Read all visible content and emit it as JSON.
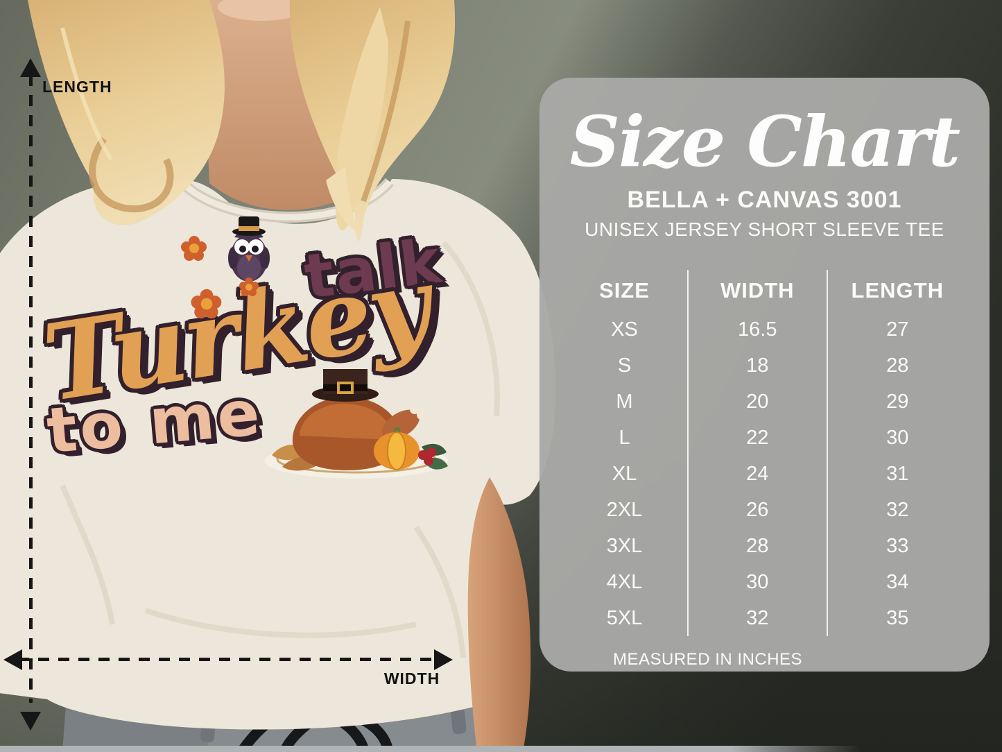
{
  "measurement_labels": {
    "length": "LENGTH",
    "width": "WIDTH"
  },
  "shirt_design": {
    "word_talk": "talk",
    "word_turkey": "Turkey",
    "word_to_me": "to me",
    "icons": [
      "pilgrim-owl-icon",
      "roast-turkey-dinner-icon",
      "flower-icon"
    ]
  },
  "size_chart": {
    "title": "Size Chart",
    "product_line1": "BELLA + CANVAS 3001",
    "product_line2": "UNISEX JERSEY SHORT SLEEVE TEE",
    "columns": [
      "SIZE",
      "WIDTH",
      "LENGTH"
    ],
    "rows": [
      [
        "XS",
        "16.5",
        "27"
      ],
      [
        "S",
        "18",
        "28"
      ],
      [
        "M",
        "20",
        "29"
      ],
      [
        "L",
        "22",
        "30"
      ],
      [
        "XL",
        "24",
        "31"
      ],
      [
        "2XL",
        "26",
        "32"
      ],
      [
        "3XL",
        "28",
        "33"
      ],
      [
        "4XL",
        "30",
        "34"
      ],
      [
        "5XL",
        "32",
        "35"
      ]
    ],
    "footnote": "MEASURED IN INCHES"
  },
  "colors": {
    "panel_bg": "#a8a8a6",
    "panel_text": "#fbfbfa",
    "arrow": "#161616",
    "tee": "#ece7da",
    "design_orange": "#e2a054",
    "design_plum": "#6d3a4f",
    "design_peach": "#ecbd9f",
    "design_outline": "#32202c"
  },
  "chart_data": {
    "type": "table",
    "title": "Size Chart",
    "subtitle": "BELLA + CANVAS 3001 — UNISEX JERSEY SHORT SLEEVE TEE",
    "columns": [
      "SIZE",
      "WIDTH",
      "LENGTH"
    ],
    "rows": [
      [
        "XS",
        16.5,
        27
      ],
      [
        "S",
        18,
        28
      ],
      [
        "M",
        20,
        29
      ],
      [
        "L",
        22,
        30
      ],
      [
        "XL",
        24,
        31
      ],
      [
        "2XL",
        26,
        32
      ],
      [
        "3XL",
        28,
        33
      ],
      [
        "4XL",
        30,
        34
      ],
      [
        "5XL",
        32,
        35
      ]
    ],
    "units": "inches"
  }
}
